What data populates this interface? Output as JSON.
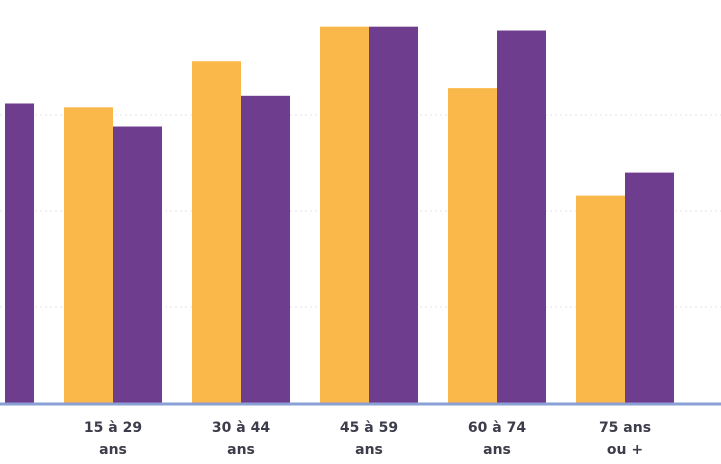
{
  "chart_data": {
    "type": "bar",
    "categories": [
      [
        "15 à 29",
        "ans"
      ],
      [
        "30 à 44",
        "ans"
      ],
      [
        "45 à 59",
        "ans"
      ],
      [
        "60 à 74",
        "ans"
      ],
      [
        "75 ans",
        "ou +"
      ]
    ],
    "leading_partial_bar": {
      "series": 1,
      "value": 78
    },
    "series": [
      {
        "color": "#fbb84a",
        "values": [
          77,
          89,
          98,
          82,
          54
        ]
      },
      {
        "color": "#6e3d8d",
        "values": [
          72,
          80,
          98,
          97,
          60
        ]
      }
    ],
    "ylim": [
      0,
      100
    ],
    "grid": true,
    "axis_color": "#8a9fd6",
    "grid_color": "#e6e6e6"
  }
}
